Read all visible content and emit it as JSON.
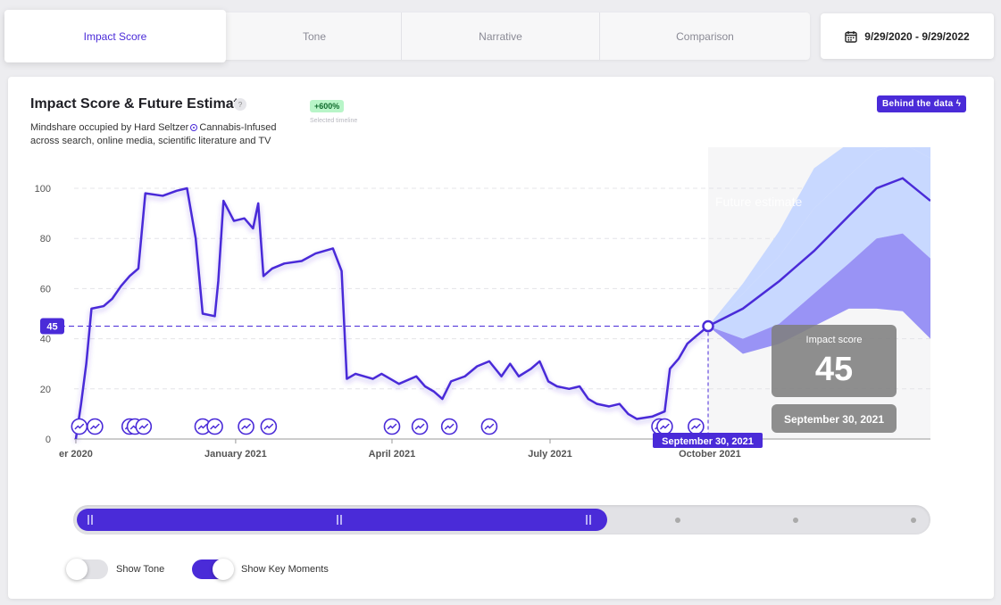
{
  "tabs": [
    {
      "label": "Impact Score",
      "active": true
    },
    {
      "label": "Tone",
      "active": false
    },
    {
      "label": "Narrative",
      "active": false
    },
    {
      "label": "Comparison",
      "active": false
    }
  ],
  "date_range": {
    "icon": "calendar-icon",
    "label": "9/29/2020 - 9/29/2022"
  },
  "card": {
    "title": "Impact Score & Future Estimate",
    "help_icon": "?",
    "subtitle_line1_a": "Mindshare occupied by Hard Seltzer",
    "subtitle_line1_b": "Cannabis-Infused",
    "subtitle_line2": "across search, online media, scientific literature and TV",
    "change_badge": "+600%",
    "change_label": "Selected timeline",
    "behind_button": "Behind the data ϟ"
  },
  "chart_data": {
    "type": "line",
    "ylim": [
      0,
      100
    ],
    "y_ticks": [
      "0",
      "20",
      "40",
      "60",
      "80",
      "100"
    ],
    "x_ticks": [
      {
        "label": "er 2020",
        "date": "2020-10-01"
      },
      {
        "label": "January 2021",
        "date": "2021-01-01"
      },
      {
        "label": "April 2021",
        "date": "2021-04-01"
      },
      {
        "label": "July 2021",
        "date": "2021-07-01"
      },
      {
        "label": "October 2021",
        "date": "2021-10-01"
      }
    ],
    "series": [
      {
        "values": [
          [
            "2020-10-01",
            0
          ],
          [
            "2020-10-04",
            14
          ],
          [
            "2020-10-07",
            30
          ],
          [
            "2020-10-10",
            52
          ],
          [
            "2020-10-17",
            53
          ],
          [
            "2020-10-22",
            56
          ],
          [
            "2020-10-27",
            61
          ],
          [
            "2020-11-01",
            65
          ],
          [
            "2020-11-06",
            68
          ],
          [
            "2020-11-10",
            98
          ],
          [
            "2020-11-20",
            97
          ],
          [
            "2020-11-28",
            99
          ],
          [
            "2020-12-04",
            100
          ],
          [
            "2020-12-09",
            80
          ],
          [
            "2020-12-13",
            50
          ],
          [
            "2020-12-20",
            49
          ],
          [
            "2020-12-22",
            63
          ],
          [
            "2020-12-25",
            95
          ],
          [
            "2020-12-31",
            87
          ],
          [
            "2021-01-06",
            88
          ],
          [
            "2021-01-11",
            84
          ],
          [
            "2021-01-14",
            94
          ],
          [
            "2021-01-17",
            65
          ],
          [
            "2021-01-22",
            68
          ],
          [
            "2021-01-29",
            70
          ],
          [
            "2021-02-08",
            71
          ],
          [
            "2021-02-16",
            74
          ],
          [
            "2021-02-26",
            76
          ],
          [
            "2021-03-03",
            67
          ],
          [
            "2021-03-06",
            24
          ],
          [
            "2021-03-11",
            26
          ],
          [
            "2021-03-21",
            24
          ],
          [
            "2021-03-26",
            26
          ],
          [
            "2021-04-05",
            22
          ],
          [
            "2021-04-15",
            25
          ],
          [
            "2021-04-20",
            21
          ],
          [
            "2021-04-25",
            19
          ],
          [
            "2021-04-30",
            16
          ],
          [
            "2021-05-05",
            23
          ],
          [
            "2021-05-13",
            25
          ],
          [
            "2021-05-20",
            29
          ],
          [
            "2021-05-27",
            31
          ],
          [
            "2021-06-03",
            25
          ],
          [
            "2021-06-08",
            30
          ],
          [
            "2021-06-13",
            25
          ],
          [
            "2021-06-20",
            28
          ],
          [
            "2021-06-25",
            31
          ],
          [
            "2021-06-30",
            23
          ],
          [
            "2021-07-05",
            21
          ],
          [
            "2021-07-12",
            20
          ],
          [
            "2021-07-18",
            21
          ],
          [
            "2021-07-23",
            16
          ],
          [
            "2021-07-28",
            14
          ],
          [
            "2021-08-04",
            13
          ],
          [
            "2021-08-10",
            14
          ],
          [
            "2021-08-15",
            10
          ],
          [
            "2021-08-20",
            8
          ],
          [
            "2021-08-29",
            9
          ],
          [
            "2021-09-05",
            11
          ],
          [
            "2021-09-08",
            28
          ],
          [
            "2021-09-13",
            32
          ],
          [
            "2021-09-18",
            38
          ],
          [
            "2021-09-23",
            41
          ],
          [
            "2021-09-30",
            45
          ]
        ]
      }
    ],
    "forecast": {
      "label": "Future estimate",
      "center": [
        [
          "2021-09-30",
          45
        ],
        [
          "2021-10-20",
          52
        ],
        [
          "2021-11-10",
          63
        ],
        [
          "2021-11-30",
          75
        ],
        [
          "2021-12-20",
          89
        ],
        [
          "2022-01-05",
          100
        ],
        [
          "2022-01-20",
          104
        ],
        [
          "2022-02-05",
          95
        ]
      ],
      "inner_upper": [
        [
          "2021-09-30",
          45
        ],
        [
          "2021-10-20",
          58
        ],
        [
          "2021-11-10",
          73
        ],
        [
          "2021-11-30",
          92
        ],
        [
          "2021-12-20",
          105
        ],
        [
          "2022-01-05",
          115
        ],
        [
          "2022-01-20",
          118
        ],
        [
          "2022-02-05",
          112
        ]
      ],
      "inner_lower": [
        [
          "2021-09-30",
          45
        ],
        [
          "2021-10-20",
          40
        ],
        [
          "2021-11-10",
          46
        ],
        [
          "2021-11-30",
          58
        ],
        [
          "2021-12-20",
          70
        ],
        [
          "2022-01-05",
          80
        ],
        [
          "2022-01-20",
          82
        ],
        [
          "2022-02-05",
          72
        ]
      ],
      "outer_upper": [
        [
          "2021-09-30",
          45
        ],
        [
          "2021-10-20",
          62
        ],
        [
          "2021-11-10",
          83
        ],
        [
          "2021-11-30",
          108
        ],
        [
          "2021-12-20",
          118
        ],
        [
          "2022-01-05",
          120
        ],
        [
          "2022-01-20",
          120
        ],
        [
          "2022-02-05",
          120
        ]
      ],
      "outer_lower": [
        [
          "2021-09-30",
          45
        ],
        [
          "2021-10-20",
          34
        ],
        [
          "2021-11-10",
          38
        ],
        [
          "2021-11-30",
          45
        ],
        [
          "2021-12-20",
          52
        ],
        [
          "2022-01-05",
          52
        ],
        [
          "2022-01-20",
          51
        ],
        [
          "2022-02-05",
          40
        ]
      ]
    },
    "key_moments": [
      "2020-10-03",
      "2020-10-12",
      "2020-11-01",
      "2020-11-04",
      "2020-11-09",
      "2020-12-13",
      "2020-12-20",
      "2021-01-07",
      "2021-01-20",
      "2021-04-01",
      "2021-04-17",
      "2021-05-04",
      "2021-05-27",
      "2021-09-02",
      "2021-09-05",
      "2021-09-23"
    ],
    "current_marker": {
      "value_label": "45",
      "date_label": "September 30, 2021"
    },
    "tooltip": {
      "title": "Impact score",
      "value": "45",
      "date": "September 30, 2021"
    },
    "x_domain": [
      "2020-09-30",
      "2022-02-05"
    ],
    "grid": true,
    "colors": {
      "line": "#4a2bd8",
      "band_outer": "#c8d8ff",
      "band_inner": "#9993f5",
      "forecast_bg": "#f6f6f7",
      "dashed": "#4a2bd8"
    }
  },
  "slider": {
    "handle_icon": "grip-icon"
  },
  "toggles": {
    "show_tone": "Show Tone",
    "show_key_moments": "Show Key Moments"
  }
}
